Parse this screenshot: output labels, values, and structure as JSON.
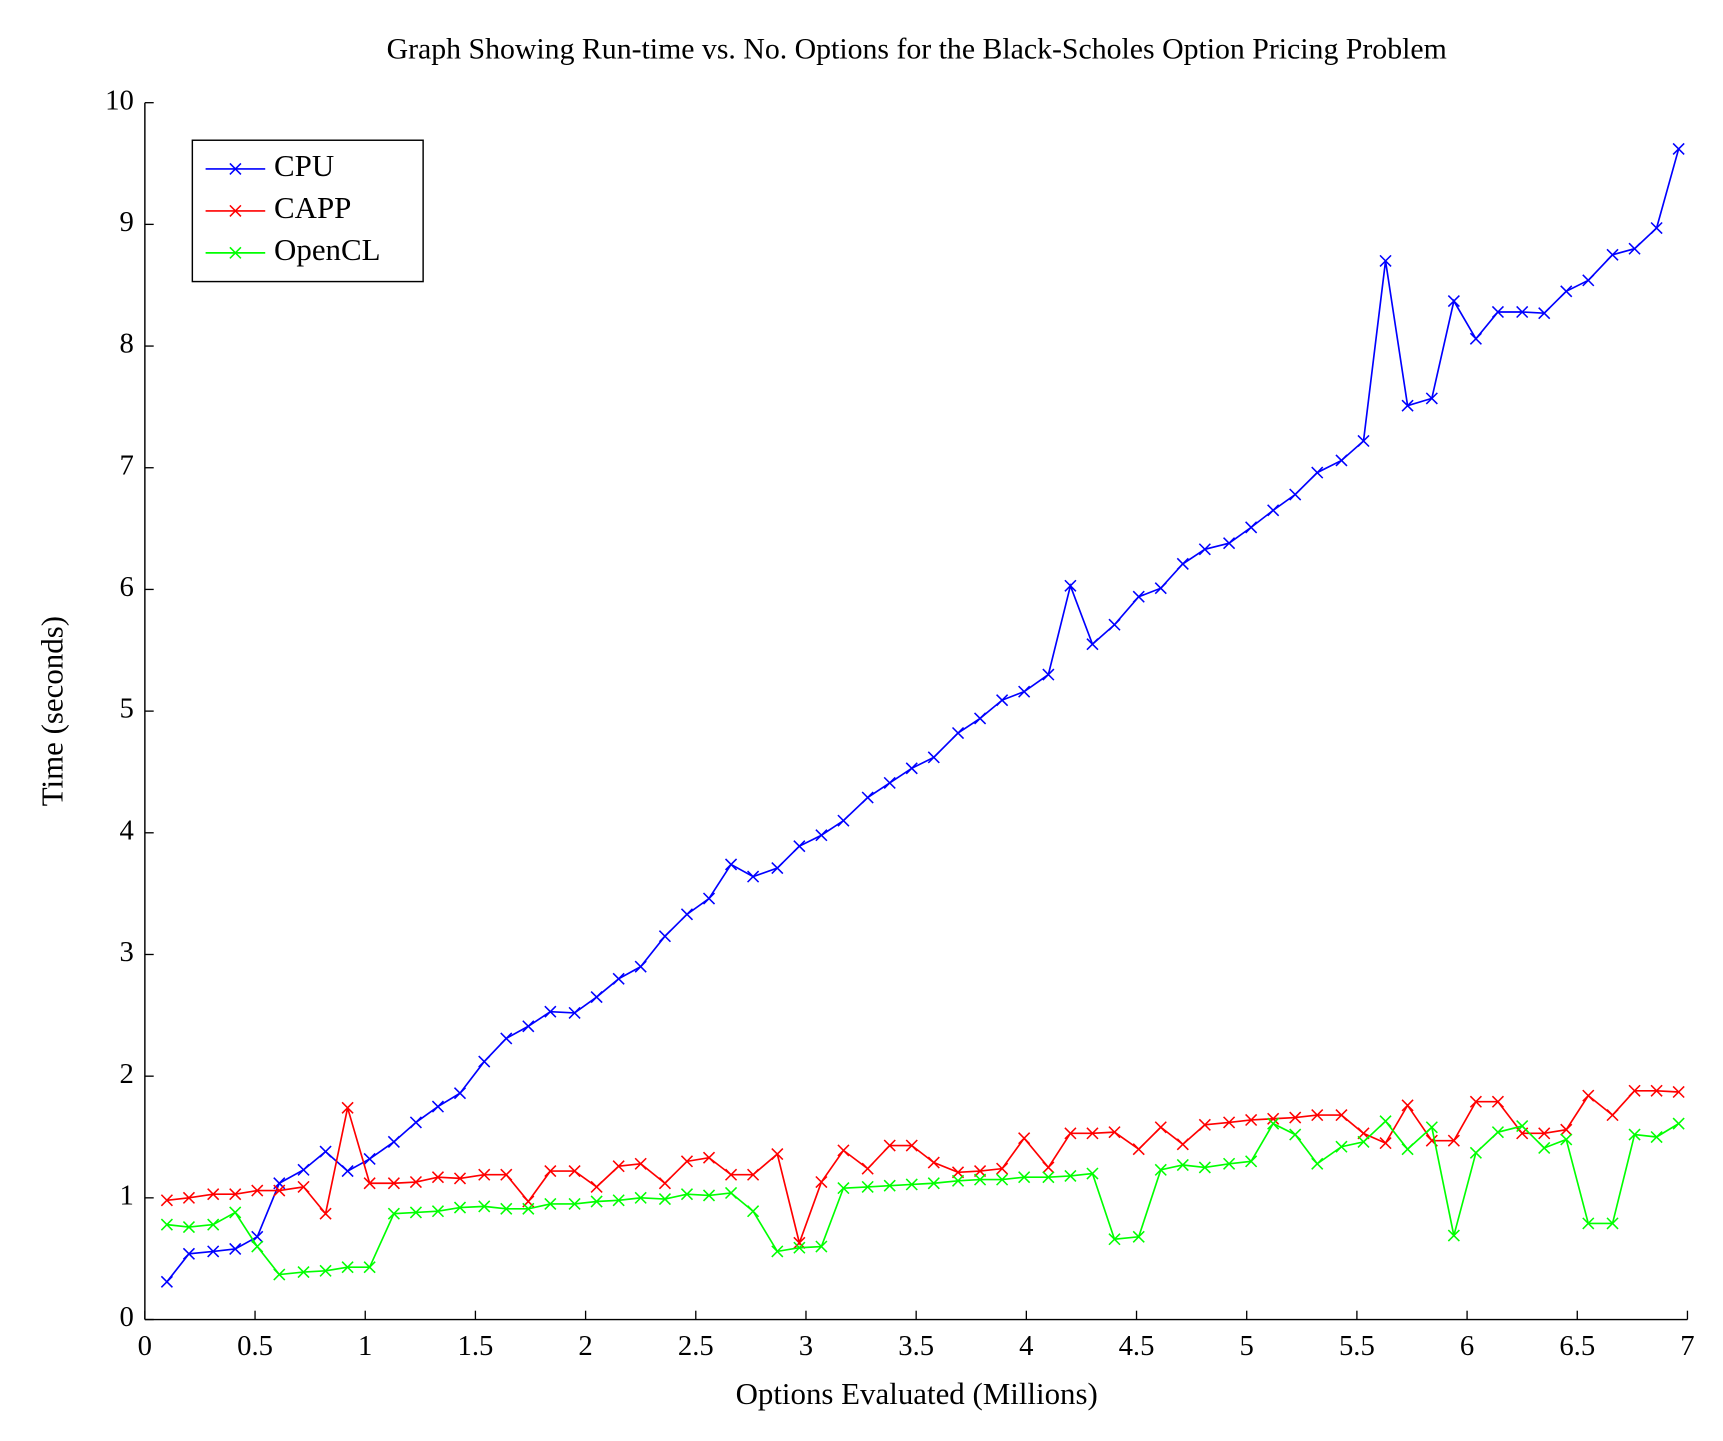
{
  "chart_data": {
    "type": "line",
    "title": "Graph Showing Run-time vs. No. Options for the Black-Scholes Option Pricing Problem",
    "x_label": "Options Evaluated (Millions)",
    "y_label": "Time (seconds)",
    "x": [
      0.1,
      0.2,
      0.31,
      0.41,
      0.51,
      0.61,
      0.72,
      0.82,
      0.92,
      1.02,
      1.13,
      1.23,
      1.33,
      1.43,
      1.54,
      1.64,
      1.74,
      1.84,
      1.95,
      2.05,
      2.15,
      2.25,
      2.36,
      2.46,
      2.56,
      2.66,
      2.76,
      2.87,
      2.97,
      3.07,
      3.17,
      3.28,
      3.38,
      3.48,
      3.58,
      3.69,
      3.79,
      3.89,
      3.99,
      4.1,
      4.2,
      4.3,
      4.4,
      4.51,
      4.61,
      4.71,
      4.81,
      4.92,
      5.02,
      5.12,
      5.22,
      5.32,
      5.43,
      5.53,
      5.63,
      5.73,
      5.84,
      5.94,
      6.04,
      6.14,
      6.25,
      6.35,
      6.45,
      6.55,
      6.66,
      6.76,
      6.86,
      6.96
    ],
    "series": [
      {
        "name": "CPU",
        "color": "#0000ff",
        "values": [
          0.31,
          0.54,
          0.56,
          0.58,
          0.68,
          1.12,
          1.23,
          1.38,
          1.22,
          1.32,
          1.46,
          1.62,
          1.75,
          1.86,
          2.12,
          2.31,
          2.41,
          2.53,
          2.52,
          2.65,
          2.8,
          2.9,
          3.15,
          3.33,
          3.46,
          3.74,
          3.64,
          3.71,
          3.89,
          3.98,
          4.1,
          4.29,
          4.41,
          4.53,
          4.62,
          4.82,
          4.94,
          5.09,
          5.16,
          5.3,
          6.03,
          5.55,
          5.71,
          5.94,
          6.01,
          6.21,
          6.33,
          6.38,
          6.51,
          6.65,
          6.78,
          6.96,
          7.06,
          7.22,
          8.7,
          7.51,
          7.57,
          8.37,
          8.06,
          8.28,
          8.28,
          8.27,
          8.45,
          8.54,
          8.75,
          8.8,
          8.97,
          9.62
        ]
      },
      {
        "name": "CAPP",
        "color": "#ff0000",
        "values": [
          0.98,
          1.0,
          1.03,
          1.03,
          1.06,
          1.06,
          1.09,
          0.87,
          1.74,
          1.12,
          1.12,
          1.13,
          1.17,
          1.16,
          1.19,
          1.19,
          0.97,
          1.22,
          1.22,
          1.09,
          1.26,
          1.28,
          1.12,
          1.3,
          1.33,
          1.19,
          1.19,
          1.36,
          0.63,
          1.13,
          1.39,
          1.24,
          1.43,
          1.43,
          1.29,
          1.21,
          1.22,
          1.24,
          1.49,
          1.25,
          1.53,
          1.53,
          1.54,
          1.4,
          1.58,
          1.44,
          1.6,
          1.62,
          1.64,
          1.65,
          1.66,
          1.68,
          1.68,
          1.53,
          1.45,
          1.76,
          1.47,
          1.47,
          1.79,
          1.79,
          1.53,
          1.53,
          1.56,
          1.84,
          1.68,
          1.88,
          1.88,
          1.87
        ]
      },
      {
        "name": "OpenCL",
        "color": "#00ff00",
        "values": [
          0.78,
          0.76,
          0.78,
          0.88,
          0.6,
          0.37,
          0.39,
          0.4,
          0.43,
          0.43,
          0.87,
          0.88,
          0.89,
          0.92,
          0.93,
          0.91,
          0.91,
          0.95,
          0.95,
          0.97,
          0.98,
          1.0,
          0.99,
          1.03,
          1.02,
          1.04,
          0.89,
          0.56,
          0.59,
          0.6,
          1.08,
          1.09,
          1.1,
          1.11,
          1.12,
          1.14,
          1.15,
          1.15,
          1.17,
          1.17,
          1.18,
          1.2,
          0.66,
          0.68,
          1.23,
          1.27,
          1.25,
          1.28,
          1.3,
          1.61,
          1.52,
          1.28,
          1.42,
          1.46,
          1.63,
          1.4,
          1.58,
          0.69,
          1.37,
          1.54,
          1.59,
          1.41,
          1.48,
          0.79,
          0.79,
          1.52,
          1.5,
          1.61
        ]
      }
    ],
    "xlim": [
      0,
      7
    ],
    "xticks": [
      0,
      0.5,
      1,
      1.5,
      2,
      2.5,
      3,
      3.5,
      4,
      4.5,
      5,
      5.5,
      6,
      6.5,
      7
    ],
    "ylim": [
      0,
      10
    ],
    "yticks": [
      0,
      1,
      2,
      3,
      4,
      5,
      6,
      7,
      8,
      9,
      10
    ],
    "legend": "upper left",
    "grid": false
  }
}
